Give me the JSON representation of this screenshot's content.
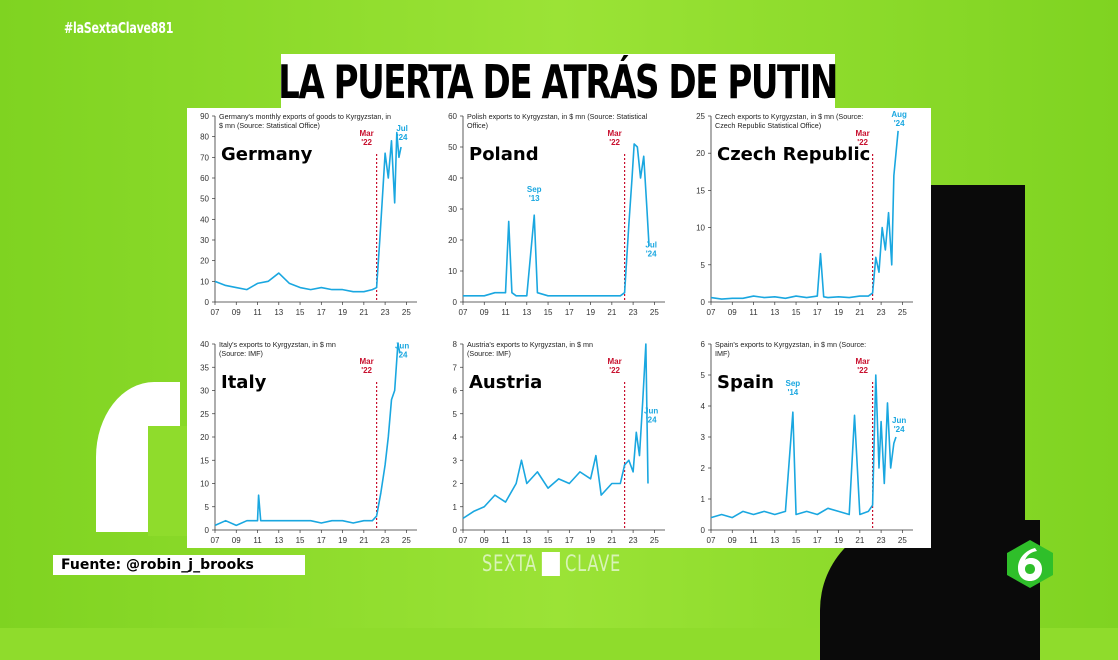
{
  "hashtag": "#laSextaClave881",
  "headline": "LA PUERTA DE ATRÁS DE PUTIN",
  "source_label": "Fuente: @robin_j_brooks",
  "logo": {
    "left": "SEXTA",
    "right": "CLAVE"
  },
  "colors": {
    "background": "#8fdc2c",
    "series": "#1aa7e0",
    "marker": "#c8102e"
  },
  "chart_data": [
    {
      "type": "line",
      "country": "Germany",
      "desc": [
        "Germany's monthly exports of goods to Kyrgyzstan, in",
        "$ mn (Source: Statistical Office)"
      ],
      "ylim": [
        0,
        90
      ],
      "yticks": [
        0,
        10,
        20,
        30,
        40,
        50,
        60,
        70,
        80,
        90
      ],
      "xlim": [
        2007,
        2026
      ],
      "xticks": [
        "07",
        "09",
        "11",
        "13",
        "15",
        "17",
        "19",
        "21",
        "23",
        "25"
      ],
      "vline": {
        "x": 2022.2,
        "label": [
          "Mar",
          "'22"
        ]
      },
      "annotations": [
        {
          "text": [
            "Jul",
            "'24"
          ],
          "x": 2024.6,
          "y": 76
        }
      ],
      "series": {
        "x": [
          2007,
          2008,
          2009,
          2010,
          2011,
          2012,
          2013,
          2014,
          2015,
          2016,
          2017,
          2018,
          2019,
          2020,
          2021,
          2021.8,
          2022.2,
          2022.5,
          2022.8,
          2023,
          2023.3,
          2023.6,
          2023.9,
          2024.1,
          2024.3,
          2024.5
        ],
        "y": [
          10,
          8,
          7,
          6,
          9,
          10,
          14,
          9,
          7,
          6,
          7,
          6,
          6,
          5,
          5,
          6,
          7,
          30,
          55,
          72,
          60,
          78,
          48,
          82,
          70,
          75
        ]
      }
    },
    {
      "type": "line",
      "country": "Poland",
      "desc": [
        "Polish exports to Kyrgyzstan, in $ mn (Source: Statistical",
        "Office)"
      ],
      "ylim": [
        0,
        60
      ],
      "yticks": [
        0,
        10,
        20,
        30,
        40,
        50,
        60
      ],
      "xlim": [
        2007,
        2026
      ],
      "xticks": [
        "07",
        "09",
        "11",
        "13",
        "15",
        "17",
        "19",
        "21",
        "23",
        "25"
      ],
      "vline": {
        "x": 2022.2,
        "label": [
          "Mar",
          "'22"
        ]
      },
      "annotations": [
        {
          "text": [
            "Sep",
            "'13"
          ],
          "x": 2013.7,
          "y": 31
        },
        {
          "text": [
            "Jul",
            "'24"
          ],
          "x": 2024.7,
          "y": 13
        }
      ],
      "series": {
        "x": [
          2007,
          2008,
          2009,
          2010,
          2011,
          2011.3,
          2011.6,
          2012,
          2013,
          2013.7,
          2014,
          2015,
          2016,
          2017,
          2018,
          2019,
          2020,
          2021,
          2021.8,
          2022.2,
          2022.6,
          2022.9,
          2023.1,
          2023.4,
          2023.7,
          2024,
          2024.3,
          2024.5
        ],
        "y": [
          2,
          2,
          2,
          3,
          3,
          26,
          3,
          2,
          2,
          28,
          3,
          2,
          2,
          2,
          2,
          2,
          2,
          2,
          2,
          3,
          25,
          40,
          51,
          50,
          40,
          47,
          30,
          18
        ]
      }
    },
    {
      "type": "line",
      "country": "Czech Republic",
      "desc": [
        "Czech exports to Kyrgyzstan, in $ mn (Source:",
        "Czech Republic Statistical Office)"
      ],
      "ylim": [
        0,
        25
      ],
      "yticks": [
        0,
        5,
        10,
        15,
        20,
        25
      ],
      "xlim": [
        2007,
        2026
      ],
      "xticks": [
        "07",
        "09",
        "11",
        "13",
        "15",
        "17",
        "19",
        "21",
        "23",
        "25"
      ],
      "vline": {
        "x": 2022.2,
        "label": [
          "Mar",
          "'22"
        ]
      },
      "annotations": [
        {
          "text": [
            "Aug",
            "'24"
          ],
          "x": 2024.7,
          "y": 23
        }
      ],
      "series": {
        "x": [
          2007,
          2008,
          2009,
          2010,
          2011,
          2012,
          2013,
          2014,
          2015,
          2016,
          2017,
          2017.3,
          2017.6,
          2018,
          2019,
          2020,
          2021,
          2021.8,
          2022.2,
          2022.5,
          2022.8,
          2023.1,
          2023.4,
          2023.7,
          2024,
          2024.2,
          2024.4,
          2024.6
        ],
        "y": [
          0.6,
          0.4,
          0.5,
          0.5,
          0.8,
          0.6,
          0.7,
          0.5,
          0.8,
          0.6,
          0.8,
          6.5,
          0.7,
          0.6,
          0.7,
          0.6,
          0.8,
          0.8,
          1.2,
          6,
          4,
          10,
          7,
          12,
          5,
          17,
          20,
          23
        ]
      }
    },
    {
      "type": "line",
      "country": "Italy",
      "desc": [
        "Italy's exports to Kyrgyzstan, in $ mn",
        "(Source: IMF)"
      ],
      "ylim": [
        0,
        40
      ],
      "yticks": [
        0,
        5,
        10,
        15,
        20,
        25,
        30,
        35,
        40
      ],
      "xlim": [
        2007,
        2026
      ],
      "xticks": [
        "07",
        "09",
        "11",
        "13",
        "15",
        "17",
        "19",
        "21",
        "23",
        "25"
      ],
      "vline": {
        "x": 2022.2,
        "label": [
          "Mar",
          "'22"
        ]
      },
      "annotations": [
        {
          "text": [
            "Jun",
            "'24"
          ],
          "x": 2024.6,
          "y": 36
        }
      ],
      "series": {
        "x": [
          2007,
          2008,
          2009,
          2010,
          2011,
          2011.1,
          2011.3,
          2012,
          2013,
          2014,
          2015,
          2016,
          2017,
          2018,
          2019,
          2020,
          2021,
          2021.8,
          2022.2,
          2022.6,
          2023,
          2023.3,
          2023.6,
          2023.9,
          2024.2,
          2024.4
        ],
        "y": [
          1,
          2,
          1,
          2,
          2,
          7.5,
          2,
          2,
          2,
          2,
          2,
          2,
          1.5,
          2,
          2,
          1.5,
          2,
          2,
          3,
          8,
          14,
          20,
          28,
          30,
          40,
          38
        ]
      }
    },
    {
      "type": "line",
      "country": "Austria",
      "desc": [
        "Austria's exports to Kyrgyzstan, in $ mn",
        "(Source: IMF)"
      ],
      "ylim": [
        0,
        8
      ],
      "yticks": [
        0,
        1,
        2,
        3,
        4,
        5,
        6,
        7,
        8
      ],
      "xlim": [
        2007,
        2026
      ],
      "xticks": [
        "07",
        "09",
        "11",
        "13",
        "15",
        "17",
        "19",
        "21",
        "23",
        "25"
      ],
      "vline": {
        "x": 2022.2,
        "label": [
          "Mar",
          "'22"
        ]
      },
      "annotations": [
        {
          "text": [
            "Jun",
            "'24"
          ],
          "x": 2024.7,
          "y": 4.4
        }
      ],
      "series": {
        "x": [
          2007,
          2008,
          2009,
          2010,
          2011,
          2012,
          2012.5,
          2013,
          2014,
          2015,
          2016,
          2017,
          2018,
          2019,
          2019.5,
          2020,
          2021,
          2021.8,
          2022.2,
          2022.6,
          2023,
          2023.3,
          2023.6,
          2023.9,
          2024.2,
          2024.4
        ],
        "y": [
          0.5,
          0.8,
          1,
          1.5,
          1.2,
          2,
          3,
          2,
          2.5,
          1.8,
          2.2,
          2,
          2.5,
          2.2,
          3.2,
          1.5,
          2,
          2,
          2.8,
          3,
          2.5,
          4.2,
          3.2,
          5.5,
          8,
          2
        ]
      }
    },
    {
      "type": "line",
      "country": "Spain",
      "desc": [
        "Spain's exports to Kyrgyzstan, in $ mn (Source:",
        "IMF)"
      ],
      "ylim": [
        0,
        6
      ],
      "yticks": [
        0,
        1,
        2,
        3,
        4,
        5,
        6
      ],
      "xlim": [
        2007,
        2026
      ],
      "xticks": [
        "07",
        "09",
        "11",
        "13",
        "15",
        "17",
        "19",
        "21",
        "23",
        "25"
      ],
      "vline": {
        "x": 2022.2,
        "label": [
          "Mar",
          "'22"
        ]
      },
      "annotations": [
        {
          "text": [
            "Sep",
            "'14"
          ],
          "x": 2014.7,
          "y": 4.2
        },
        {
          "text": [
            "Jun",
            "'24"
          ],
          "x": 2024.7,
          "y": 3
        }
      ],
      "series": {
        "x": [
          2007,
          2008,
          2009,
          2010,
          2011,
          2012,
          2013,
          2014,
          2014.7,
          2015,
          2016,
          2017,
          2018,
          2019,
          2020,
          2020.5,
          2021,
          2021.8,
          2022.2,
          2022.5,
          2022.8,
          2023,
          2023.3,
          2023.6,
          2023.9,
          2024.2,
          2024.4
        ],
        "y": [
          0.4,
          0.5,
          0.4,
          0.6,
          0.5,
          0.6,
          0.5,
          0.6,
          3.8,
          0.5,
          0.6,
          0.5,
          0.7,
          0.6,
          0.5,
          3.7,
          0.5,
          0.6,
          0.8,
          5,
          2,
          3.5,
          1.5,
          4.1,
          2,
          2.8,
          3
        ]
      }
    }
  ]
}
